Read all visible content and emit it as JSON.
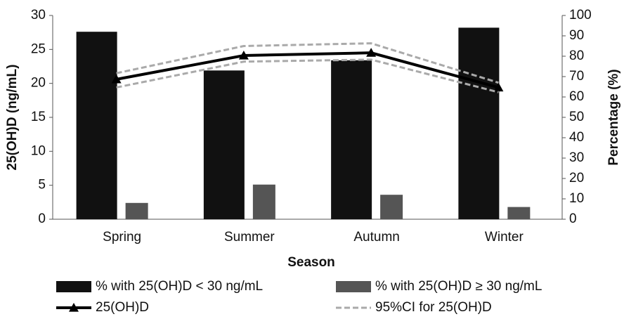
{
  "chart_data": {
    "type": "combo",
    "x_label": "Season",
    "y_label": "25(OH)D (ng/mL)",
    "y2_label": "Percentage (%)",
    "categories": [
      "Spring",
      "Summer",
      "Autumn",
      "Winter"
    ],
    "ylim": [
      0,
      30
    ],
    "yticks": [
      0,
      5,
      10,
      15,
      20,
      25,
      30
    ],
    "y2lim": [
      0,
      100
    ],
    "y2ticks": [
      0,
      10,
      20,
      30,
      40,
      50,
      60,
      70,
      80,
      90,
      100
    ],
    "series": [
      {
        "name": "% with 25(OH)D < 30 ng/mL",
        "type": "bar",
        "axis": "y2",
        "color": "#111111",
        "values": [
          92,
          73,
          78,
          94
        ]
      },
      {
        "name": "% with 25(OH)D ≥ 30 ng/mL",
        "type": "bar",
        "axis": "y2",
        "color": "#555555",
        "values": [
          8,
          17,
          12,
          6
        ]
      },
      {
        "name": "25(OH)D",
        "type": "line",
        "axis": "y",
        "color": "#000000",
        "values": [
          20.6,
          24.1,
          24.5,
          19.4
        ]
      },
      {
        "name": "95%CI for 25(OH)D",
        "type": "ci",
        "axis": "y",
        "color": "#aaaaaa",
        "upper": [
          21.5,
          25.5,
          25.9,
          20.1
        ],
        "lower": [
          19.4,
          23.2,
          23.5,
          18.7
        ]
      }
    ]
  }
}
